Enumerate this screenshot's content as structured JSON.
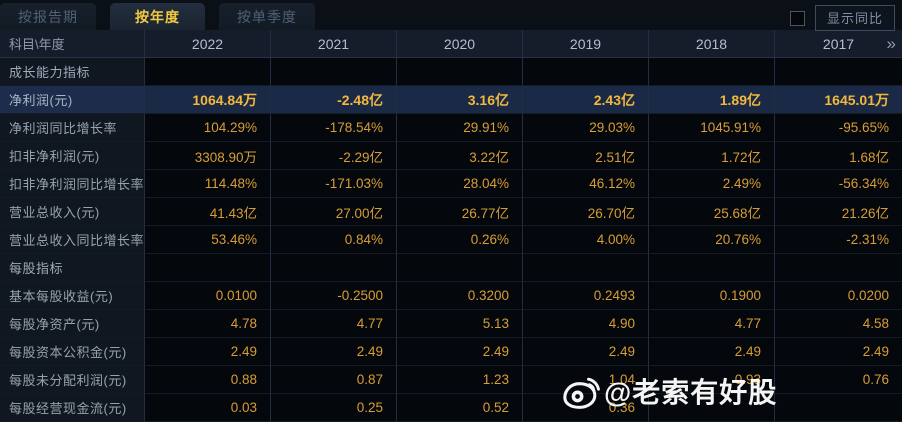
{
  "tabs": [
    {
      "id": "tab-report-period",
      "label": "按报告期",
      "active": false
    },
    {
      "id": "tab-annual",
      "label": "按年度",
      "active": true
    },
    {
      "id": "tab-quarterly",
      "label": "按单季度",
      "active": false
    }
  ],
  "controls": {
    "show_yoy_label": "显示同比",
    "show_yoy_checked": false
  },
  "table": {
    "corner_label": "科目\\年度",
    "years": [
      "2022",
      "2021",
      "2020",
      "2019",
      "2018",
      "2017"
    ],
    "more_icon": "»",
    "rows": [
      {
        "type": "section",
        "label": "成长能力指标",
        "values": [
          "",
          "",
          "",
          "",
          "",
          ""
        ]
      },
      {
        "type": "data",
        "highlight": true,
        "label": "净利润(元)",
        "values": [
          "1064.84万",
          "-2.48亿",
          "3.16亿",
          "2.43亿",
          "1.89亿",
          "1645.01万"
        ]
      },
      {
        "type": "data",
        "highlight": false,
        "label": "净利润同比增长率",
        "values": [
          "104.29%",
          "-178.54%",
          "29.91%",
          "29.03%",
          "1045.91%",
          "-95.65%"
        ]
      },
      {
        "type": "data",
        "highlight": false,
        "label": "扣非净利润(元)",
        "values": [
          "3308.90万",
          "-2.29亿",
          "3.22亿",
          "2.51亿",
          "1.72亿",
          "1.68亿"
        ]
      },
      {
        "type": "data",
        "highlight": false,
        "label": "扣非净利润同比增长率",
        "values": [
          "114.48%",
          "-171.03%",
          "28.04%",
          "46.12%",
          "2.49%",
          "-56.34%"
        ]
      },
      {
        "type": "data",
        "highlight": false,
        "label": "营业总收入(元)",
        "values": [
          "41.43亿",
          "27.00亿",
          "26.77亿",
          "26.70亿",
          "25.68亿",
          "21.26亿"
        ]
      },
      {
        "type": "data",
        "highlight": false,
        "label": "营业总收入同比增长率",
        "values": [
          "53.46%",
          "0.84%",
          "0.26%",
          "4.00%",
          "20.76%",
          "-2.31%"
        ]
      },
      {
        "type": "section",
        "label": "每股指标",
        "values": [
          "",
          "",
          "",
          "",
          "",
          ""
        ]
      },
      {
        "type": "data",
        "highlight": false,
        "label": "基本每股收益(元)",
        "values": [
          "0.0100",
          "-0.2500",
          "0.3200",
          "0.2493",
          "0.1900",
          "0.0200"
        ]
      },
      {
        "type": "data",
        "highlight": false,
        "label": "每股净资产(元)",
        "values": [
          "4.78",
          "4.77",
          "5.13",
          "4.90",
          "4.77",
          "4.58"
        ]
      },
      {
        "type": "data",
        "highlight": false,
        "label": "每股资本公积金(元)",
        "values": [
          "2.49",
          "2.49",
          "2.49",
          "2.49",
          "2.49",
          "2.49"
        ]
      },
      {
        "type": "data",
        "highlight": false,
        "label": "每股未分配利润(元)",
        "values": [
          "0.88",
          "0.87",
          "1.23",
          "1.04",
          "0.93",
          "0.76"
        ]
      },
      {
        "type": "data",
        "highlight": false,
        "label": "每股经营现金流(元)",
        "values": [
          "0.03",
          "0.25",
          "0.52",
          "0.36",
          "",
          ""
        ]
      }
    ]
  },
  "watermark": {
    "text": "@老索有好股",
    "icon": "weibo-icon"
  },
  "colors": {
    "value_gold": "#d89d36",
    "highlight_gold": "#f2b83d",
    "highlight_row_bg": "#1a2946",
    "active_tab_text": "#f5c93f",
    "header_bg": "#151d2a",
    "label_col_bg": "#111720",
    "data_cell_bg": "#04070b"
  }
}
